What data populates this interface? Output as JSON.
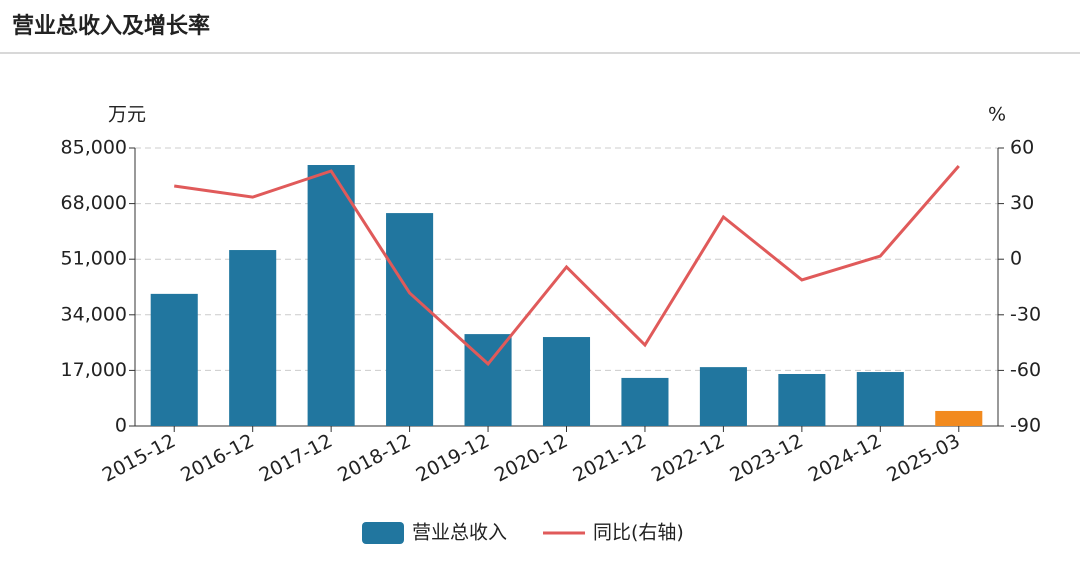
{
  "chart_data": {
    "type": "bar",
    "title": "营业总收入及增长率",
    "y_label": "万元",
    "y2_label": "%",
    "categories": [
      "2015-12",
      "2016-12",
      "2017-12",
      "2018-12",
      "2019-12",
      "2020-12",
      "2021-12",
      "2022-12",
      "2023-12",
      "2024-12",
      "2025-03"
    ],
    "series": [
      {
        "name": "营业总收入",
        "type": "bar",
        "color": "#21769f",
        "colors": [
          "#21769f",
          "#21769f",
          "#21769f",
          "#21769f",
          "#21769f",
          "#21769f",
          "#21769f",
          "#21769f",
          "#21769f",
          "#21769f",
          "#f28a1e"
        ],
        "values": [
          40400,
          53800,
          79800,
          65100,
          28100,
          27200,
          14700,
          18000,
          15900,
          16500,
          4600
        ]
      },
      {
        "name": "同比(右轴)",
        "type": "line",
        "axis": "y2",
        "color": "#e05a5a",
        "values": [
          39.5,
          33.5,
          47.6,
          -18.2,
          -56.5,
          -4.2,
          -46.3,
          22.8,
          -11.2,
          1.7,
          50.3
        ]
      }
    ],
    "ylim": [
      0,
      85000
    ],
    "yticks": [
      0,
      {
        "value": 17000,
        "label": "17,000"
      },
      {
        "value": 34000,
        "label": "34,000"
      },
      {
        "value": 51000,
        "label": "51,000"
      },
      {
        "value": 68000,
        "label": "68,000"
      },
      {
        "value": 85000,
        "label": "85,000"
      }
    ],
    "y2lim": [
      -90,
      60
    ],
    "y2ticks": [
      -90,
      -60,
      -30,
      0,
      30,
      60
    ],
    "grid": true
  }
}
